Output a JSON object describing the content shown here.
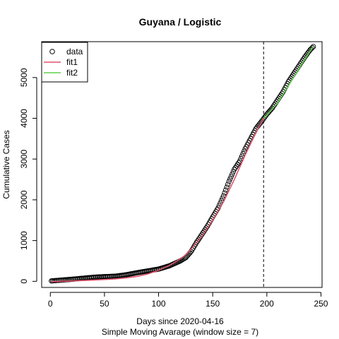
{
  "chart_data": {
    "type": "scatter",
    "title": "Guyana / Logistic",
    "xlabel": "Days since 2020-04-16",
    "subtitle": "Simple Moving Avarage (window size = 7)",
    "ylabel": "Cumulative Cases",
    "xlim": [
      -8,
      251
    ],
    "ylim": [
      -150,
      5880
    ],
    "x_ticks": [
      0,
      50,
      100,
      150,
      200,
      250
    ],
    "y_ticks": [
      0,
      1000,
      2000,
      3000,
      4000,
      5000
    ],
    "cutoff_day": 197,
    "colors": {
      "data": "#000000",
      "fit1": "#DF536B",
      "fit2": "#61D04F",
      "cutoff": "#000000"
    },
    "legend": {
      "position": "top-left",
      "entries": [
        {
          "label": "data",
          "symbol": "open-circle",
          "color": "#000000"
        },
        {
          "label": "fit1",
          "symbol": "line",
          "color": "#DF536B"
        },
        {
          "label": "fit2",
          "symbol": "line",
          "color": "#61D04F"
        }
      ]
    },
    "data_points": [
      [
        1,
        10
      ],
      [
        10,
        30
      ],
      [
        20,
        50
      ],
      [
        30,
        75
      ],
      [
        40,
        100
      ],
      [
        50,
        115
      ],
      [
        60,
        125
      ],
      [
        70,
        160
      ],
      [
        80,
        210
      ],
      [
        90,
        255
      ],
      [
        100,
        300
      ],
      [
        110,
        380
      ],
      [
        115,
        440
      ],
      [
        120,
        500
      ],
      [
        125,
        580
      ],
      [
        130,
        730
      ],
      [
        135,
        950
      ],
      [
        140,
        1150
      ],
      [
        145,
        1350
      ],
      [
        150,
        1580
      ],
      [
        155,
        1800
      ],
      [
        160,
        2100
      ],
      [
        165,
        2450
      ],
      [
        170,
        2750
      ],
      [
        175,
        2950
      ],
      [
        180,
        3250
      ],
      [
        185,
        3500
      ],
      [
        190,
        3750
      ],
      [
        195,
        3920
      ],
      [
        197,
        3990
      ],
      [
        200,
        4100
      ],
      [
        205,
        4250
      ],
      [
        210,
        4450
      ],
      [
        215,
        4650
      ],
      [
        220,
        4900
      ],
      [
        225,
        5100
      ],
      [
        230,
        5300
      ],
      [
        235,
        5500
      ],
      [
        240,
        5680
      ],
      [
        243,
        5760
      ]
    ],
    "series": [
      {
        "name": "fit1",
        "points": [
          [
            1,
            -10
          ],
          [
            20,
            10
          ],
          [
            40,
            30
          ],
          [
            60,
            60
          ],
          [
            70,
            85
          ],
          [
            80,
            120
          ],
          [
            90,
            180
          ],
          [
            100,
            270
          ],
          [
            110,
            390
          ],
          [
            120,
            550
          ],
          [
            125,
            650
          ],
          [
            130,
            790
          ],
          [
            140,
            1100
          ],
          [
            150,
            1500
          ],
          [
            160,
            1950
          ],
          [
            170,
            2500
          ],
          [
            180,
            3100
          ],
          [
            190,
            3650
          ],
          [
            197,
            4000
          ]
        ]
      },
      {
        "name": "fit2",
        "points": [
          [
            197,
            4000
          ],
          [
            200,
            4080
          ],
          [
            210,
            4380
          ],
          [
            220,
            4800
          ],
          [
            230,
            5230
          ],
          [
            240,
            5650
          ],
          [
            243,
            5760
          ]
        ]
      }
    ]
  }
}
